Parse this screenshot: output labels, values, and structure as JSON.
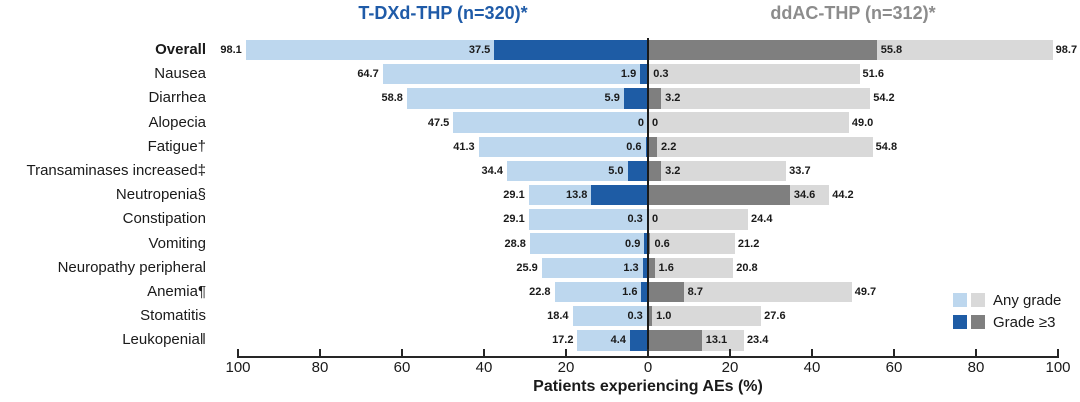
{
  "chart_data": {
    "type": "bar",
    "orientation": "horizontal-diverging-tornado",
    "left_title": "T-DXd-THP (n=320)*",
    "right_title": "ddAC-THP (n=312)*",
    "xlabel": "Patients experiencing AEs (%)",
    "axis_ticks": [
      "100",
      "80",
      "60",
      "40",
      "20",
      "0",
      "20",
      "40",
      "60",
      "80",
      "100"
    ],
    "xlim_each_side": [
      0,
      100
    ],
    "grid": false,
    "legend_position": "bottom-right",
    "categories": [
      "Overall",
      "Nausea",
      "Diarrhea",
      "Alopecia",
      "Fatigue†",
      "Transaminases increased‡",
      "Neutropenia§",
      "Constipation",
      "Vomiting",
      "Neuropathy peripheral",
      "Anemia¶",
      "Stomatitis",
      "Leukopenia‖"
    ],
    "bold_category": "Overall",
    "series": [
      {
        "name": "T-DXd-THP Any grade",
        "side": "left",
        "grade": "any",
        "color": "#BDD7EE",
        "values": [
          98.1,
          64.7,
          58.8,
          47.5,
          41.3,
          34.4,
          29.1,
          29.1,
          28.8,
          25.9,
          22.8,
          18.4,
          17.2
        ],
        "labels": [
          "98.1",
          "64.7",
          "58.8",
          "47.5",
          "41.3",
          "34.4",
          "29.1",
          "29.1",
          "28.8",
          "25.9",
          "22.8",
          "18.4",
          "17.2"
        ]
      },
      {
        "name": "T-DXd-THP Grade ≥3",
        "side": "left",
        "grade": "g3",
        "color": "#1E5CA5",
        "values": [
          37.5,
          1.9,
          5.9,
          0,
          0.6,
          5.0,
          13.8,
          0.3,
          0.9,
          1.3,
          1.6,
          0.3,
          4.4
        ],
        "labels": [
          "37.5",
          "1.9",
          "5.9",
          "0",
          "0.6",
          "5.0",
          "13.8",
          "0.3",
          "0.9",
          "1.3",
          "1.6",
          "0.3",
          "4.4"
        ]
      },
      {
        "name": "ddAC-THP Grade ≥3",
        "side": "right",
        "grade": "g3",
        "color": "#7F7F7F",
        "values": [
          55.8,
          0.3,
          3.2,
          0,
          2.2,
          3.2,
          34.6,
          0,
          0.6,
          1.6,
          8.7,
          1.0,
          13.1
        ],
        "labels": [
          "55.8",
          "0.3",
          "3.2",
          "0",
          "2.2",
          "3.2",
          "34.6",
          "0",
          "0.6",
          "1.6",
          "8.7",
          "1.0",
          "13.1"
        ]
      },
      {
        "name": "ddAC-THP Any grade",
        "side": "right",
        "grade": "any",
        "color": "#D9D9D9",
        "values": [
          98.7,
          51.6,
          54.2,
          49.0,
          54.8,
          33.7,
          44.2,
          24.4,
          21.2,
          20.8,
          49.7,
          27.6,
          23.4
        ],
        "labels": [
          "98.7",
          "51.6",
          "54.2",
          "49.0",
          "54.8",
          "33.7",
          "44.2",
          "24.4",
          "21.2",
          "20.8",
          "49.7",
          "27.6",
          "23.4"
        ]
      }
    ],
    "legend": [
      {
        "label": "Any grade",
        "left_color": "#BDD7EE",
        "right_color": "#D9D9D9"
      },
      {
        "label": "Grade ≥3",
        "left_color": "#1E5CA5",
        "right_color": "#7F7F7F"
      }
    ],
    "colors": {
      "left_any": "#BDD7EE",
      "left_grade3": "#1E5CA5",
      "right_any": "#D9D9D9",
      "right_grade3": "#7F7F7F",
      "left_title": "#1F5BA8",
      "right_title": "#8C8C8C",
      "axis": "#262626",
      "text": "#1a1a1a"
    }
  }
}
